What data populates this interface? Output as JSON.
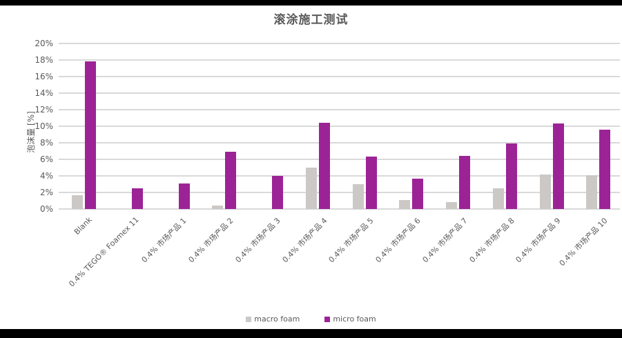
{
  "title": "滚涂施工测试",
  "y_axis_title": "泡沫量 [%]",
  "colors": {
    "macro_foam": "#cbc8c6",
    "micro_foam": "#9c2396",
    "gridline": "#d9d9d9",
    "text": "#595959",
    "background": "#ffffff",
    "edge_strips": "#000000"
  },
  "legend": {
    "items": [
      "macro foam",
      "micro foam"
    ]
  },
  "chart_data": {
    "type": "bar",
    "title": "滚涂施工测试",
    "xlabel": "",
    "ylabel": "泡沫量 [%]",
    "ylim": [
      0,
      20
    ],
    "ytick_step": 2,
    "ytick_suffix": "%",
    "grid": true,
    "legend_position": "bottom",
    "categories": [
      "Blank",
      "0.4% TEGO® Foamex 11",
      "0.4% 市场产品 1",
      "0.4% 市场产品 2",
      "0.4% 市场产品 3",
      "0.4% 市场产品 4",
      "0.4% 市场产品 5",
      "0.4% 市场产品 6",
      "0.4% 市场产品 7",
      "0.4% 市场产品 8",
      "0.4% 市场产品 9",
      "0.4% 市场产品 10"
    ],
    "series": [
      {
        "name": "macro foam",
        "color": "#cbc8c6",
        "values": [
          1.7,
          0,
          0,
          0.4,
          0,
          5.0,
          3.0,
          1.1,
          0.8,
          2.5,
          4.2,
          4.1
        ]
      },
      {
        "name": "micro foam",
        "color": "#9c2396",
        "values": [
          17.8,
          2.5,
          3.1,
          6.9,
          4.0,
          10.4,
          6.3,
          3.7,
          6.4,
          7.9,
          10.3,
          9.6
        ]
      }
    ]
  }
}
